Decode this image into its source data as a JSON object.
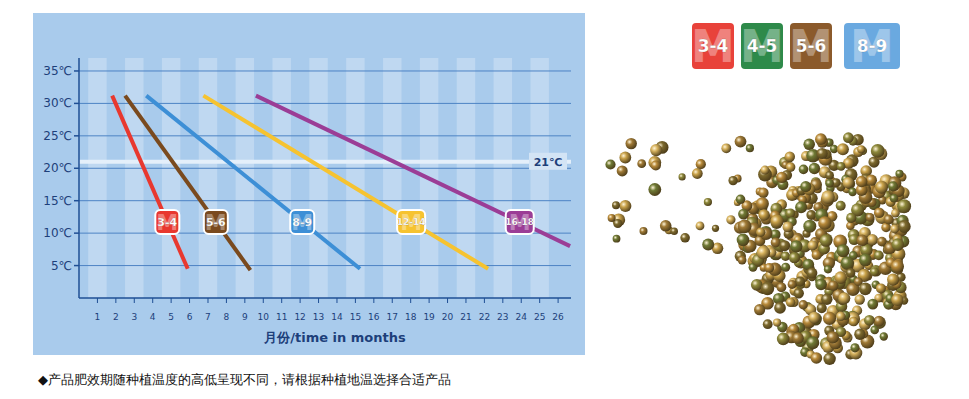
{
  "chart_data": {
    "type": "line",
    "x_label": "月份/time in months",
    "xlim": [
      0,
      26.7
    ],
    "xticks": [
      1,
      2,
      3,
      4,
      5,
      6,
      7,
      8,
      9,
      10,
      11,
      12,
      13,
      14,
      15,
      16,
      17,
      18,
      19,
      20,
      21,
      22,
      23,
      24,
      25,
      26
    ],
    "ylim": [
      0,
      37
    ],
    "yticks": [
      {
        "value": 5,
        "label": "5℃"
      },
      {
        "value": 10,
        "label": "10℃"
      },
      {
        "value": 15,
        "label": "15℃"
      },
      {
        "value": 20,
        "label": "20℃"
      },
      {
        "value": 25,
        "label": "25℃"
      },
      {
        "value": 30,
        "label": "30℃"
      },
      {
        "value": 35,
        "label": "35℃"
      }
    ],
    "grid": true,
    "series": [
      {
        "name": "3-4",
        "color": "#e8382f",
        "x": [
          1.8,
          5.9
        ],
        "values": [
          31.2,
          4.5
        ]
      },
      {
        "name": "5-6",
        "color": "#7a4a1e",
        "x": [
          2.5,
          9.3
        ],
        "values": [
          31.2,
          4.3
        ]
      },
      {
        "name": "8-9",
        "color": "#3d8fd6",
        "x": [
          3.65,
          15.25
        ],
        "values": [
          31.2,
          4.5
        ]
      },
      {
        "name": "12-14",
        "color": "#f6c330",
        "x": [
          6.75,
          22.2
        ],
        "values": [
          31.2,
          4.5
        ]
      },
      {
        "name": "16-18",
        "color": "#9b3d96",
        "x": [
          9.6,
          26.65
        ],
        "values": [
          31.2,
          8
        ]
      }
    ],
    "reference_line": {
      "value": 21,
      "label": "21℃"
    }
  },
  "badge_letter": "M",
  "badges": [
    {
      "label": "3-4",
      "color": "#e8423a"
    },
    {
      "label": "4-5",
      "color": "#2e8a4a"
    },
    {
      "label": "5-6",
      "color": "#8b5a2b"
    },
    {
      "label": "8-9",
      "color": "#6aa9e0"
    }
  ],
  "caption": "◆产品肥效期随种植温度的高低呈现不同，请根据种植地温选择合适产品"
}
